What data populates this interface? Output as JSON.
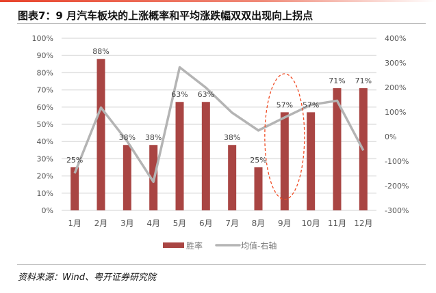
{
  "title": "图表7：9 月汽车板块的上涨概率和平均涨跌幅双双出现向上拐点",
  "source": "资料来源：Wind、粤开证券研究院",
  "colors": {
    "bar": "#A94543",
    "line": "#B4B4B4",
    "highlight": "#F04A22"
  },
  "chart_data": {
    "type": "bar+line",
    "categories": [
      "1月",
      "2月",
      "3月",
      "4月",
      "5月",
      "6月",
      "7月",
      "8月",
      "9月",
      "10月",
      "11月",
      "12月"
    ],
    "series": [
      {
        "name": "胜率",
        "type": "bar",
        "axis": "left",
        "values": [
          25,
          88,
          38,
          38,
          63,
          63,
          38,
          25,
          57,
          57,
          71,
          71
        ],
        "labels": [
          "25%",
          "88%",
          "38%",
          "38%",
          "63%",
          "63%",
          "38%",
          "25%",
          "57%",
          "57%",
          "71%",
          "71%"
        ]
      },
      {
        "name": "均值-右轴",
        "type": "line",
        "axis": "right",
        "values": [
          -149,
          118,
          -19,
          -184,
          282,
          199,
          97,
          25,
          78,
          129,
          146,
          -56
        ]
      }
    ],
    "left_axis": {
      "ylim": [
        0,
        100
      ],
      "ticks": [
        "0%",
        "10%",
        "20%",
        "30%",
        "40%",
        "50%",
        "60%",
        "70%",
        "80%",
        "90%",
        "100%"
      ]
    },
    "right_axis": {
      "ylim": [
        -300,
        400
      ],
      "ticks": [
        "-300%",
        "-200%",
        "-100%",
        "0%",
        "100%",
        "200%",
        "300%",
        "400%"
      ]
    },
    "grid": true,
    "legend": {
      "position": "bottom",
      "entries": [
        "胜率",
        "均值-右轴"
      ]
    },
    "annotation": "dashed ellipse highlighting 9月"
  }
}
